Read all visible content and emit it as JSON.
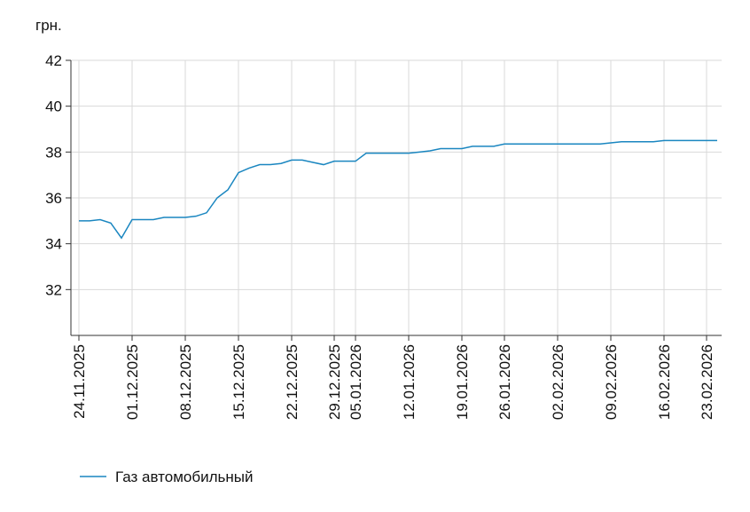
{
  "chart_data": {
    "type": "line",
    "y_label": "грн.",
    "categories": [
      "24.11.2025",
      null,
      null,
      null,
      null,
      "01.12.2025",
      null,
      null,
      null,
      null,
      "08.12.2025",
      null,
      null,
      null,
      null,
      "15.12.2025",
      null,
      null,
      null,
      null,
      "22.12.2025",
      null,
      null,
      null,
      "29.12.2025",
      null,
      "05.01.2026",
      null,
      null,
      null,
      null,
      "12.01.2026",
      null,
      null,
      null,
      null,
      "19.01.2026",
      null,
      null,
      null,
      "26.01.2026",
      null,
      null,
      null,
      null,
      "02.02.2026",
      null,
      null,
      null,
      null,
      "09.02.2026",
      null,
      null,
      null,
      null,
      "16.02.2026",
      null,
      null,
      null,
      "23.02.2026",
      null
    ],
    "series": [
      {
        "name": "Газ автомобильный",
        "color": "#1a86c0",
        "values": [
          35.0,
          35.0,
          35.05,
          34.9,
          34.25,
          35.05,
          35.05,
          35.05,
          35.15,
          35.15,
          35.15,
          35.2,
          35.35,
          36.0,
          36.35,
          37.1,
          37.3,
          37.45,
          37.45,
          37.5,
          37.65,
          37.65,
          37.55,
          37.45,
          37.6,
          37.6,
          37.6,
          37.95,
          37.95,
          37.95,
          37.95,
          37.95,
          38.0,
          38.05,
          38.15,
          38.15,
          38.15,
          38.25,
          38.25,
          38.25,
          38.35,
          38.35,
          38.35,
          38.35,
          38.35,
          38.35,
          38.35,
          38.35,
          38.35,
          38.35,
          38.4,
          38.45,
          38.45,
          38.45,
          38.45,
          38.5,
          38.5,
          38.5,
          38.5,
          38.5,
          38.5
        ]
      }
    ],
    "ylim": [
      30,
      42
    ],
    "yticks": [
      32,
      34,
      36,
      38,
      40,
      42
    ],
    "grid": true,
    "legend": "bottom-left"
  }
}
